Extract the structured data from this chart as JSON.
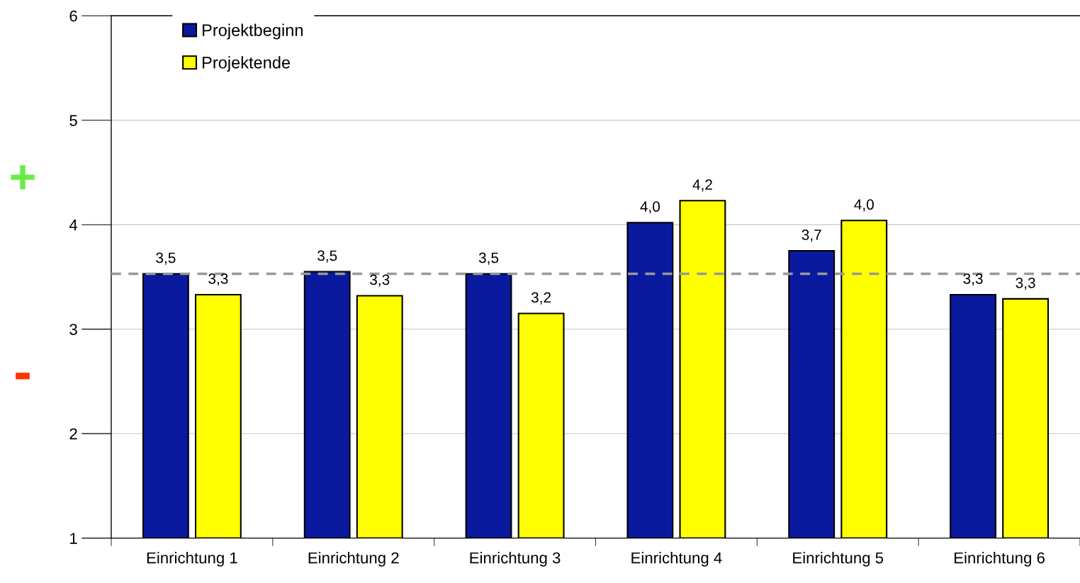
{
  "chart_data": {
    "type": "bar",
    "categories": [
      "Einrichtung 1",
      "Einrichtung 2",
      "Einrichtung 3",
      "Einrichtung 4",
      "Einrichtung 5",
      "Einrichtung 6"
    ],
    "series": [
      {
        "name": "Projektbeginn",
        "color": "#0a1a9e",
        "values": [
          3.53,
          3.55,
          3.53,
          4.02,
          3.75,
          3.33
        ],
        "value_labels": [
          "3,5",
          "3,5",
          "3,5",
          "4,0",
          "3,7",
          "3,3"
        ]
      },
      {
        "name": "Projektende",
        "color": "#ffff00",
        "values": [
          3.33,
          3.32,
          3.15,
          4.23,
          4.04,
          3.29
        ],
        "value_labels": [
          "3,3",
          "3,3",
          "3,2",
          "4,2",
          "4,0",
          "3,3"
        ]
      }
    ],
    "ylim": [
      1,
      6
    ],
    "yticks": [
      1,
      2,
      3,
      4,
      5,
      6
    ],
    "grid": "y",
    "legend": "top left",
    "ref_lines": [
      {
        "axis": "y",
        "value": 3.53,
        "color": "#999999",
        "line_style": "dashed"
      }
    ],
    "annotations": [
      "+",
      "-"
    ]
  }
}
